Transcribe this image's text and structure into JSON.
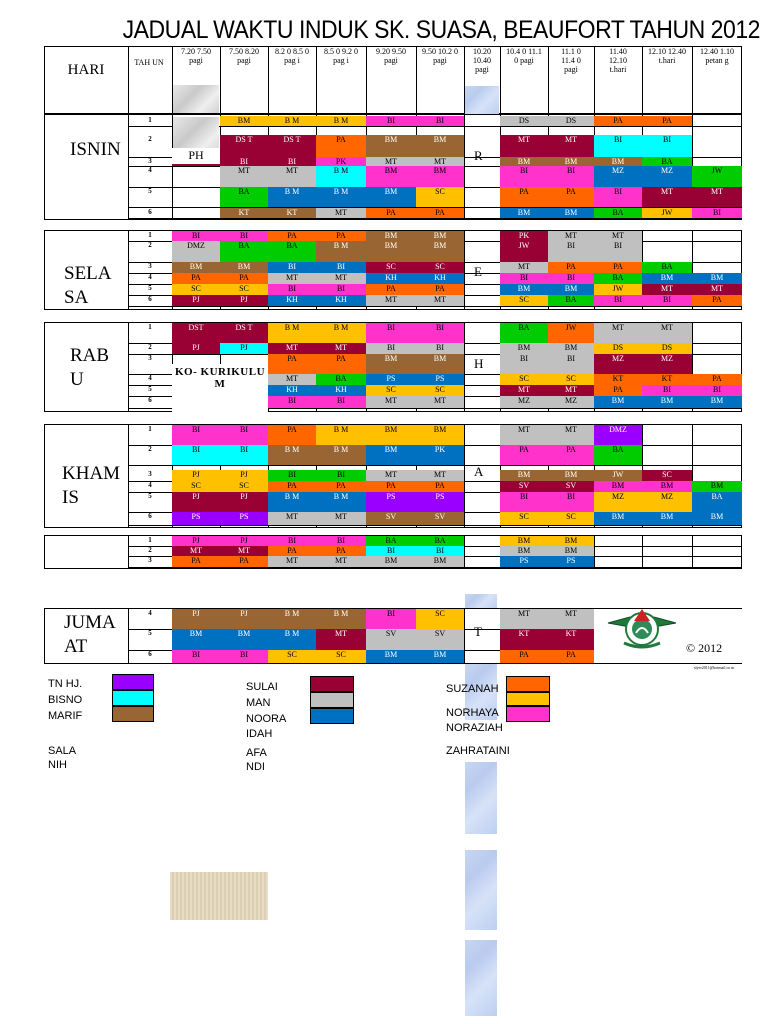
{
  "title": "JADUAL WAKTU INDUK SK. SUASA, BEAUFORT TAHUN 2012",
  "header": {
    "hari": "HARI",
    "tahun": "TAH UN",
    "periods": [
      "7.20 7.50 pagi",
      "7.50 8.20 pagi",
      "8.2 0 8.5 0 pag i",
      "8.5 0 9.2 0 pag i",
      "9.20 9.50 pagi",
      "9.50 10.2 0 pagi",
      "10.20 10.40 pagi",
      "10.4 0 11.1 0 pagi",
      "11.1 0 11.4 0 pagi",
      "11.40 12.10 t.hari",
      "12.10 12.40 t.hari",
      "12.40 1.10 petan g"
    ]
  },
  "days": {
    "isnin": "ISNIN",
    "selasa": "SELA SA",
    "rabu": "RAB U",
    "khamis": "KHAM IS",
    "jumaat": "JUMA AT"
  },
  "special": {
    "ph": "PH",
    "kokurikulum": "KO- KURIKULU M",
    "rehat_letters": [
      "R",
      "E",
      "H",
      "A",
      "T"
    ]
  },
  "copyright": "© 2012",
  "email": "slyer2011@hotmail.co m",
  "legend": {
    "col1": [
      "TN HJ.",
      "BISNO",
      "MARIF",
      "SALA",
      "NIH"
    ],
    "col2": [
      "SULAI",
      "MAN",
      "NOORA",
      "IDAH",
      "AFA",
      "NDI"
    ],
    "col3": [
      "SUZANAH",
      "NORHAYA",
      "NORAZIAH",
      "ZAHRATAINI"
    ],
    "colors": {
      "tnhj": "#9900ff",
      "bisno": "#00ffff",
      "marif": "#996633",
      "sulaiman": "#990033",
      "nooraidah": "#c0c0c0",
      "afandi": "#0070c0",
      "suzanah": "#ff6600",
      "norhayati": "#ffc000",
      "noraziah": "#ff33cc",
      "zahrataini": "#00cc00"
    }
  },
  "colors": {
    "BI": "#ff33cc",
    "BM": "#ffc000",
    "MT": "#c0c0c0",
    "PA": "#ff6600",
    "SC": "#ffc000",
    "KH": "#0070c0",
    "BA": "#00cc00",
    "PJ": "#990033",
    "PK": "#ff33cc",
    "DS": "#c0c0c0",
    "KT": "#996633",
    "JW": "#ff6600",
    "DMZ": "#c0c0c0",
    "DST": "#990033",
    "MZ": "#990033",
    "SV": "#990033",
    "PS": "#9900ff"
  },
  "rows": [
    {
      "y": 116,
      "h": 10,
      "yr": "1",
      "c": [
        [
          "BM",
          "#ffc000"
        ],
        [
          "B M",
          "#ffc000"
        ],
        [
          "B M",
          "#ffc000"
        ],
        [
          "BI",
          "#ff33cc"
        ],
        [
          "BI",
          "#ff33cc"
        ],
        [
          "DS",
          "#c0c0c0"
        ],
        [
          "DS",
          "#c0c0c0"
        ],
        [
          "PA",
          "#ff6600"
        ],
        [
          "PA",
          "#ff6600"
        ],
        [
          "",
          ""
        ]
      ],
      "skip0": true
    },
    {
      "y": 135,
      "h": 22,
      "yr": "2",
      "c": [
        [
          "DS T",
          "#990033"
        ],
        [
          "DS T",
          "#990033"
        ],
        [
          "PA",
          "#ff6600"
        ],
        [
          "BM",
          "#996633"
        ],
        [
          "BM",
          "#996633"
        ],
        [
          "MT",
          "#990033"
        ],
        [
          "MT",
          "#990033"
        ],
        [
          "BI",
          "#00ffff"
        ],
        [
          "BI",
          "#00ffff"
        ],
        [
          "",
          ""
        ]
      ],
      "skip0": true
    },
    {
      "y": 157,
      "h": 9,
      "yr": "3",
      "c": [
        [
          "BI",
          "#990033"
        ],
        [
          "BI",
          "#990033"
        ],
        [
          "PK",
          "#ff33cc"
        ],
        [
          "MT",
          "#c0c0c0"
        ],
        [
          "MT",
          "#c0c0c0"
        ],
        [
          "BM",
          "#996633"
        ],
        [
          "BM",
          "#996633"
        ],
        [
          "BM",
          "#996633"
        ],
        [
          "BA",
          "#00cc00"
        ],
        [
          "",
          ""
        ]
      ],
      "skip0": true
    },
    {
      "y": 166,
      "h": 21,
      "yr": "4",
      "c": [
        [
          "MT",
          "#c0c0c0"
        ],
        [
          "MT",
          "#c0c0c0"
        ],
        [
          "B M",
          "#00ffff"
        ],
        [
          "BM",
          "#ff33cc"
        ],
        [
          "BM",
          "#ff33cc"
        ],
        [
          "BI",
          "#ff33cc"
        ],
        [
          "BI",
          "#ff33cc"
        ],
        [
          "MZ",
          "#0070c0"
        ],
        [
          "MZ",
          "#0070c0"
        ],
        [
          "JW",
          "#00cc00"
        ]
      ],
      "skip0": true
    },
    {
      "y": 187,
      "h": 20,
      "yr": "5",
      "c": [
        [
          "BA",
          "#00cc00"
        ],
        [
          "B M",
          "#0070c0"
        ],
        [
          "B M",
          "#0070c0"
        ],
        [
          "BM",
          "#0070c0"
        ],
        [
          "SC",
          "#ffc000"
        ],
        [
          "PA",
          "#ff6600"
        ],
        [
          "PA",
          "#ff6600"
        ],
        [
          "BI",
          "#ff33cc"
        ],
        [
          "MT",
          "#990033"
        ],
        [
          "MT",
          "#990033"
        ]
      ],
      "skip0": true
    },
    {
      "y": 208,
      "h": 10,
      "yr": "6",
      "c": [
        [
          "KT",
          "#996633"
        ],
        [
          "KT",
          "#996633"
        ],
        [
          "MT",
          "#c0c0c0"
        ],
        [
          "PA",
          "#ff6600"
        ],
        [
          "PA",
          "#ff6600"
        ],
        [
          "BM",
          "#0070c0"
        ],
        [
          "BM",
          "#0070c0"
        ],
        [
          "BA",
          "#00cc00"
        ],
        [
          "JW",
          "#ffc000"
        ],
        [
          "BI",
          "#ff33cc"
        ]
      ],
      "skip0": true
    }
  ]
}
